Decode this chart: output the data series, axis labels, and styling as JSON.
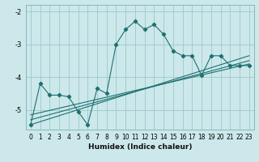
{
  "xlabel": "Humidex (Indice chaleur)",
  "ylabel": "",
  "bg_color": "#cce8ea",
  "grid_color": "#9dc8cc",
  "line_color": "#1e7070",
  "xlim": [
    -0.5,
    23.5
  ],
  "ylim": [
    -5.6,
    -1.8
  ],
  "xticks": [
    0,
    1,
    2,
    3,
    4,
    5,
    6,
    7,
    8,
    9,
    10,
    11,
    12,
    13,
    14,
    15,
    16,
    17,
    18,
    19,
    20,
    21,
    22,
    23
  ],
  "yticks": [
    -5,
    -4,
    -3,
    -2
  ],
  "series1_x": [
    0,
    1,
    2,
    3,
    4,
    5,
    6,
    7,
    8,
    9,
    10,
    11,
    12,
    13,
    14,
    15,
    16,
    17,
    18,
    19,
    20,
    21,
    22,
    23
  ],
  "series1_y": [
    -5.45,
    -4.2,
    -4.55,
    -4.55,
    -4.6,
    -5.05,
    -5.45,
    -4.35,
    -4.5,
    -3.0,
    -2.55,
    -2.3,
    -2.55,
    -2.4,
    -2.7,
    -3.2,
    -3.35,
    -3.35,
    -3.95,
    -3.35,
    -3.35,
    -3.65,
    -3.65,
    -3.65
  ],
  "series2_x": [
    0,
    23
  ],
  "series2_y": [
    -5.15,
    -3.6
  ],
  "series3_x": [
    0,
    23
  ],
  "series3_y": [
    -5.3,
    -3.5
  ],
  "series4_x": [
    0,
    23
  ],
  "series4_y": [
    -5.45,
    -3.35
  ],
  "xlabel_fontsize": 6.5,
  "tick_fontsize": 5.5
}
